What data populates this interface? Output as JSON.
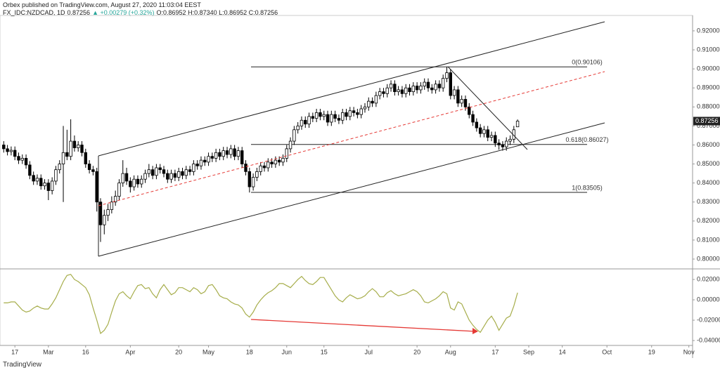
{
  "header": {
    "publisher": "Orbex published on TradingView.com, August 27, 2020 11:03:04 EEST",
    "symbol": "FX_IDC:NZDCAD, 1D",
    "price": "0.87256",
    "change": "▲ +0.00279 (+0.32%)",
    "ohlc": "O:0.86952 H:0.87340 L:0.86952 C:0.87256"
  },
  "footer": "TradingView",
  "chart_data": {
    "type": "candlestick",
    "up_color": "#ffffff",
    "down_color": "#000000",
    "xlim": [
      -1,
      185
    ],
    "ylim": [
      0.7952,
      0.9281
    ],
    "xticks": [
      {
        "value": 3,
        "label": "17"
      },
      {
        "value": 12,
        "label": "Mar"
      },
      {
        "value": 22,
        "label": "16"
      },
      {
        "value": 34,
        "label": "Apr"
      },
      {
        "value": 47,
        "label": "20"
      },
      {
        "value": 55,
        "label": "May"
      },
      {
        "value": 66,
        "label": "18"
      },
      {
        "value": 76,
        "label": "Jun"
      },
      {
        "value": 86,
        "label": "15"
      },
      {
        "value": 98,
        "label": "Jul"
      },
      {
        "value": 111,
        "label": "20"
      },
      {
        "value": 120,
        "label": "Aug"
      },
      {
        "value": 132,
        "label": "17"
      },
      {
        "value": 141,
        "label": "Sep"
      },
      {
        "value": 150,
        "label": "14"
      },
      {
        "value": 162,
        "label": "Oct"
      },
      {
        "value": 174,
        "label": "19"
      },
      {
        "value": 184,
        "label": "Nov"
      }
    ],
    "yticks": [
      {
        "value": 0.8,
        "label": "0.80000"
      },
      {
        "value": 0.81,
        "label": "0.81000"
      },
      {
        "value": 0.82,
        "label": "0.82000"
      },
      {
        "value": 0.83,
        "label": "0.83000"
      },
      {
        "value": 0.84,
        "label": "0.84000"
      },
      {
        "value": 0.85,
        "label": "0.85000"
      },
      {
        "value": 0.86,
        "label": "0.86000"
      },
      {
        "value": 0.87,
        "label": "0.87000"
      },
      {
        "value": 0.88,
        "label": "0.88000"
      },
      {
        "value": 0.89,
        "label": "0.89000"
      },
      {
        "value": 0.9,
        "label": "0.90000"
      },
      {
        "value": 0.91,
        "label": "0.91000"
      },
      {
        "value": 0.92,
        "label": "0.92000"
      }
    ],
    "last_price": {
      "value": 0.87256,
      "label": "0.87256"
    },
    "fib_levels": [
      {
        "value": 0.90106,
        "label": "0(0.90106)"
      },
      {
        "value": 0.86027,
        "label": "0.618(0.86027)"
      },
      {
        "value": 0.83505,
        "label": "1(0.83505)"
      }
    ],
    "ohlc": [
      [
        0.86,
        0.862,
        0.856,
        0.858
      ],
      [
        0.858,
        0.86,
        0.8545,
        0.8565
      ],
      [
        0.8565,
        0.8592,
        0.8545,
        0.8572
      ],
      [
        0.8572,
        0.8592,
        0.852,
        0.854
      ],
      [
        0.854,
        0.856,
        0.85,
        0.852
      ],
      [
        0.852,
        0.855,
        0.85,
        0.853
      ],
      [
        0.853,
        0.855,
        0.8475,
        0.8495
      ],
      [
        0.8495,
        0.8515,
        0.842,
        0.844
      ],
      [
        0.844,
        0.846,
        0.839,
        0.841
      ],
      [
        0.841,
        0.8445,
        0.839,
        0.8425
      ],
      [
        0.8425,
        0.8445,
        0.8365,
        0.8385
      ],
      [
        0.8385,
        0.842,
        0.8365,
        0.84
      ],
      [
        0.84,
        0.842,
        0.831,
        0.836
      ],
      [
        0.836,
        0.843,
        0.834,
        0.841
      ],
      [
        0.841,
        0.849,
        0.839,
        0.847
      ],
      [
        0.847,
        0.852,
        0.845,
        0.85
      ],
      [
        0.85,
        0.87,
        0.83,
        0.856
      ],
      [
        0.856,
        0.868,
        0.852,
        0.854
      ],
      [
        0.854,
        0.8735,
        0.852,
        0.862
      ],
      [
        0.862,
        0.865,
        0.8565,
        0.8585
      ],
      [
        0.8585,
        0.862,
        0.8565,
        0.86
      ],
      [
        0.86,
        0.862,
        0.854,
        0.856
      ],
      [
        0.856,
        0.858,
        0.848,
        0.85
      ],
      [
        0.85,
        0.852,
        0.845,
        0.847
      ],
      [
        0.847,
        0.849,
        0.844,
        0.846
      ],
      [
        0.846,
        0.848,
        0.825,
        0.83
      ],
      [
        0.83,
        0.832,
        0.809,
        0.818
      ],
      [
        0.818,
        0.826,
        0.813,
        0.823
      ],
      [
        0.823,
        0.829,
        0.82,
        0.826
      ],
      [
        0.826,
        0.833,
        0.824,
        0.83
      ],
      [
        0.83,
        0.836,
        0.828,
        0.833
      ],
      [
        0.833,
        0.842,
        0.831,
        0.84
      ],
      [
        0.84,
        0.852,
        0.838,
        0.845
      ],
      [
        0.845,
        0.848,
        0.839,
        0.841
      ],
      [
        0.841,
        0.843,
        0.835,
        0.838
      ],
      [
        0.838,
        0.844,
        0.836,
        0.842
      ],
      [
        0.842,
        0.844,
        0.8375,
        0.8395
      ],
      [
        0.8395,
        0.844,
        0.8375,
        0.842
      ],
      [
        0.842,
        0.847,
        0.84,
        0.845
      ],
      [
        0.845,
        0.85,
        0.843,
        0.847
      ],
      [
        0.847,
        0.849,
        0.842,
        0.844
      ],
      [
        0.844,
        0.85,
        0.842,
        0.848
      ],
      [
        0.848,
        0.85,
        0.845,
        0.847
      ],
      [
        0.847,
        0.849,
        0.843,
        0.845
      ],
      [
        0.845,
        0.847,
        0.84,
        0.842
      ],
      [
        0.842,
        0.847,
        0.84,
        0.845
      ],
      [
        0.845,
        0.847,
        0.841,
        0.843
      ],
      [
        0.843,
        0.848,
        0.841,
        0.846
      ],
      [
        0.846,
        0.848,
        0.842,
        0.844
      ],
      [
        0.844,
        0.849,
        0.842,
        0.847
      ],
      [
        0.847,
        0.849,
        0.844,
        0.846
      ],
      [
        0.846,
        0.852,
        0.844,
        0.85
      ],
      [
        0.85,
        0.852,
        0.847,
        0.849
      ],
      [
        0.849,
        0.854,
        0.847,
        0.852
      ],
      [
        0.852,
        0.854,
        0.849,
        0.851
      ],
      [
        0.851,
        0.856,
        0.849,
        0.854
      ],
      [
        0.854,
        0.856,
        0.851,
        0.853
      ],
      [
        0.853,
        0.858,
        0.851,
        0.856
      ],
      [
        0.856,
        0.858,
        0.852,
        0.854
      ],
      [
        0.854,
        0.859,
        0.852,
        0.857
      ],
      [
        0.857,
        0.859,
        0.853,
        0.855
      ],
      [
        0.855,
        0.86,
        0.853,
        0.858
      ],
      [
        0.858,
        0.86,
        0.852,
        0.854
      ],
      [
        0.854,
        0.859,
        0.852,
        0.857
      ],
      [
        0.857,
        0.859,
        0.848,
        0.85
      ],
      [
        0.85,
        0.852,
        0.844,
        0.846
      ],
      [
        0.846,
        0.848,
        0.835,
        0.838
      ],
      [
        0.838,
        0.845,
        0.836,
        0.843
      ],
      [
        0.843,
        0.848,
        0.841,
        0.846
      ],
      [
        0.846,
        0.851,
        0.844,
        0.849
      ],
      [
        0.849,
        0.851,
        0.846,
        0.848
      ],
      [
        0.848,
        0.853,
        0.846,
        0.851
      ],
      [
        0.851,
        0.853,
        0.848,
        0.85
      ],
      [
        0.85,
        0.854,
        0.848,
        0.852
      ],
      [
        0.852,
        0.854,
        0.849,
        0.851
      ],
      [
        0.851,
        0.855,
        0.849,
        0.853
      ],
      [
        0.853,
        0.86,
        0.851,
        0.858
      ],
      [
        0.858,
        0.864,
        0.856,
        0.862
      ],
      [
        0.862,
        0.87,
        0.86,
        0.868
      ],
      [
        0.868,
        0.872,
        0.866,
        0.87
      ],
      [
        0.87,
        0.875,
        0.868,
        0.873
      ],
      [
        0.873,
        0.875,
        0.869,
        0.871
      ],
      [
        0.871,
        0.877,
        0.869,
        0.875
      ],
      [
        0.875,
        0.877,
        0.872,
        0.874
      ],
      [
        0.874,
        0.879,
        0.872,
        0.877
      ],
      [
        0.877,
        0.879,
        0.873,
        0.875
      ],
      [
        0.875,
        0.878,
        0.873,
        0.876
      ],
      [
        0.876,
        0.878,
        0.87,
        0.872
      ],
      [
        0.872,
        0.878,
        0.87,
        0.876
      ],
      [
        0.876,
        0.878,
        0.872,
        0.874
      ],
      [
        0.874,
        0.876,
        0.871,
        0.873
      ],
      [
        0.873,
        0.879,
        0.871,
        0.877
      ],
      [
        0.877,
        0.879,
        0.873,
        0.875
      ],
      [
        0.875,
        0.88,
        0.873,
        0.878
      ],
      [
        0.878,
        0.88,
        0.875,
        0.877
      ],
      [
        0.877,
        0.879,
        0.874,
        0.876
      ],
      [
        0.876,
        0.881,
        0.874,
        0.879
      ],
      [
        0.879,
        0.882,
        0.877,
        0.88
      ],
      [
        0.88,
        0.885,
        0.878,
        0.883
      ],
      [
        0.883,
        0.885,
        0.88,
        0.882
      ],
      [
        0.882,
        0.888,
        0.88,
        0.886
      ],
      [
        0.886,
        0.89,
        0.884,
        0.888
      ],
      [
        0.888,
        0.89,
        0.885,
        0.887
      ],
      [
        0.887,
        0.892,
        0.885,
        0.89
      ],
      [
        0.89,
        0.894,
        0.888,
        0.892
      ],
      [
        0.892,
        0.894,
        0.886,
        0.888
      ],
      [
        0.888,
        0.891,
        0.886,
        0.889
      ],
      [
        0.889,
        0.891,
        0.885,
        0.887
      ],
      [
        0.887,
        0.892,
        0.885,
        0.89
      ],
      [
        0.89,
        0.892,
        0.886,
        0.888
      ],
      [
        0.888,
        0.893,
        0.886,
        0.891
      ],
      [
        0.891,
        0.893,
        0.887,
        0.889
      ],
      [
        0.889,
        0.893,
        0.887,
        0.891
      ],
      [
        0.891,
        0.895,
        0.889,
        0.893
      ],
      [
        0.893,
        0.895,
        0.888,
        0.89
      ],
      [
        0.89,
        0.892,
        0.887,
        0.889
      ],
      [
        0.889,
        0.894,
        0.887,
        0.892
      ],
      [
        0.892,
        0.894,
        0.888,
        0.89
      ],
      [
        0.89,
        0.897,
        0.888,
        0.895
      ],
      [
        0.895,
        0.901,
        0.893,
        0.898
      ],
      [
        0.898,
        0.9,
        0.884,
        0.886
      ],
      [
        0.886,
        0.891,
        0.884,
        0.889
      ],
      [
        0.889,
        0.891,
        0.88,
        0.882
      ],
      [
        0.882,
        0.886,
        0.88,
        0.884
      ],
      [
        0.884,
        0.886,
        0.878,
        0.88
      ],
      [
        0.88,
        0.882,
        0.874,
        0.876
      ],
      [
        0.876,
        0.878,
        0.87,
        0.872
      ],
      [
        0.872,
        0.874,
        0.867,
        0.869
      ],
      [
        0.869,
        0.871,
        0.864,
        0.866
      ],
      [
        0.866,
        0.87,
        0.864,
        0.868
      ],
      [
        0.868,
        0.87,
        0.862,
        0.864
      ],
      [
        0.864,
        0.867,
        0.862,
        0.865
      ],
      [
        0.865,
        0.867,
        0.859,
        0.861
      ],
      [
        0.861,
        0.863,
        0.8575,
        0.86
      ],
      [
        0.86,
        0.862,
        0.857,
        0.859
      ],
      [
        0.859,
        0.864,
        0.857,
        0.862
      ],
      [
        0.862,
        0.865,
        0.86,
        0.863
      ],
      [
        0.863,
        0.87,
        0.861,
        0.868
      ],
      [
        0.86952,
        0.8734,
        0.86952,
        0.87256
      ]
    ],
    "oscillator": {
      "color": "#a6ad4a",
      "ylim": [
        -0.0448,
        0.0297
      ],
      "yticks": [
        {
          "value": 0.02,
          "label": "0.02000"
        },
        {
          "value": 0,
          "label": "0.00000"
        },
        {
          "value": -0.02,
          "label": "-0.02000"
        },
        {
          "value": -0.04,
          "label": "-0.04000"
        }
      ],
      "values": [
        -0.003,
        -0.003,
        -0.002,
        -0.002,
        -0.006,
        -0.01,
        -0.012,
        -0.011,
        -0.008,
        -0.006,
        -0.008,
        -0.009,
        -0.009,
        -0.004,
        0.002,
        0.01,
        0.018,
        0.024,
        0.025,
        0.02,
        0.018,
        0.015,
        0.012,
        0.005,
        -0.008,
        -0.02,
        -0.033,
        -0.03,
        -0.024,
        -0.012,
        -0.001,
        0.006,
        0.008,
        0.004,
        0.001,
        0.008,
        0.014,
        0.015,
        0.011,
        0.012,
        0.006,
        0.002,
        0.01,
        0.015,
        0.01,
        0.005,
        0.007,
        0.012,
        0.012,
        0.01,
        0.008,
        0.012,
        0.01,
        0.006,
        0.008,
        0.014,
        0.015,
        0.01,
        0.004,
        0.002,
        0.001,
        -0.002,
        -0.004,
        -0.005,
        -0.008,
        -0.014,
        -0.017,
        -0.012,
        -0.005,
        0,
        0.004,
        0.007,
        0.009,
        0.012,
        0.016,
        0.016,
        0.014,
        0.012,
        0.016,
        0.02,
        0.023,
        0.019,
        0.016,
        0.015,
        0.018,
        0.022,
        0.022,
        0.016,
        0.01,
        0.004,
        0,
        -0.002,
        0.002,
        0.005,
        0.003,
        0.001,
        0.002,
        0.004,
        0.008,
        0.011,
        0.008,
        0.003,
        0.003,
        0.007,
        0.009,
        0.006,
        0.004,
        0.005,
        0.006,
        0.008,
        0.01,
        0.008,
        0.004,
        -0.002,
        -0.003,
        -0.001,
        0.001,
        0.004,
        0.008,
        0.006,
        -0.008,
        -0.01,
        -0.002,
        -0.004,
        -0.012,
        -0.02,
        -0.025,
        -0.029,
        -0.032,
        -0.026,
        -0.02,
        -0.016,
        -0.022,
        -0.03,
        -0.024,
        -0.018,
        -0.016,
        -0.006,
        0.007
      ]
    }
  }
}
